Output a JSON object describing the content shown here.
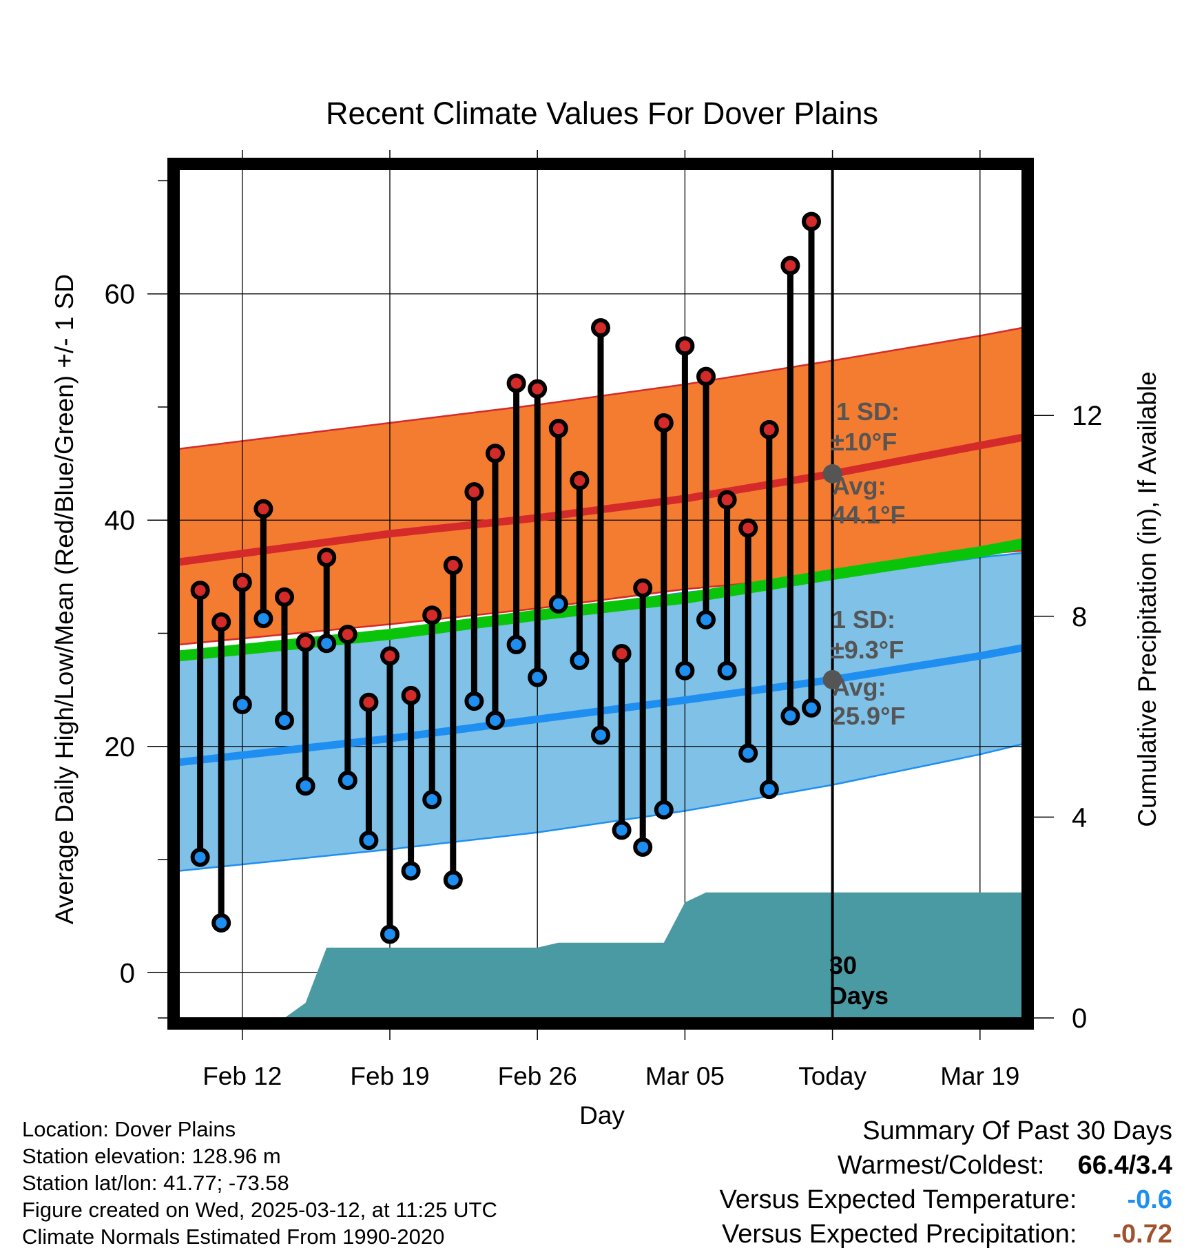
{
  "chart_data": {
    "type": "line",
    "title": "Recent Climate Values For Dover Plains",
    "xlabel": "Day",
    "ylabel": "Average Daily High/Low/Mean (Red/Blue/Green) +/- 1 SD",
    "y2label": "Cumulative Precipitation (in), If Available",
    "x_ticks": [
      "Feb 12",
      "Feb 19",
      "Feb 26",
      "Mar 05",
      "Today",
      "Mar 19"
    ],
    "y_ticks": [
      "0",
      "20",
      "40",
      "60"
    ],
    "y2_ticks": [
      "0",
      "4",
      "8",
      "12"
    ],
    "ylim": [
      -4,
      71
    ],
    "y2lim": [
      0,
      16.9
    ],
    "xlim": [
      "2025-02-09",
      "2025-03-21"
    ],
    "grid": true,
    "daily_highs": [
      {
        "date": "2025-02-10",
        "value": 33.8
      },
      {
        "date": "2025-02-11",
        "value": 31.0
      },
      {
        "date": "2025-02-12",
        "value": 34.5
      },
      {
        "date": "2025-02-13",
        "value": 41.0
      },
      {
        "date": "2025-02-14",
        "value": 33.2
      },
      {
        "date": "2025-02-15",
        "value": 29.2
      },
      {
        "date": "2025-02-16",
        "value": 36.7
      },
      {
        "date": "2025-02-17",
        "value": 29.9
      },
      {
        "date": "2025-02-18",
        "value": 23.9
      },
      {
        "date": "2025-02-19",
        "value": 28.0
      },
      {
        "date": "2025-02-20",
        "value": 24.5
      },
      {
        "date": "2025-02-21",
        "value": 31.6
      },
      {
        "date": "2025-02-22",
        "value": 36.0
      },
      {
        "date": "2025-02-23",
        "value": 42.5
      },
      {
        "date": "2025-02-24",
        "value": 45.9
      },
      {
        "date": "2025-02-25",
        "value": 52.1
      },
      {
        "date": "2025-02-26",
        "value": 51.6
      },
      {
        "date": "2025-02-27",
        "value": 48.1
      },
      {
        "date": "2025-02-28",
        "value": 43.5
      },
      {
        "date": "2025-03-01",
        "value": 57.0
      },
      {
        "date": "2025-03-02",
        "value": 28.2
      },
      {
        "date": "2025-03-03",
        "value": 34.0
      },
      {
        "date": "2025-03-04",
        "value": 48.6
      },
      {
        "date": "2025-03-05",
        "value": 55.4
      },
      {
        "date": "2025-03-06",
        "value": 52.7
      },
      {
        "date": "2025-03-07",
        "value": 41.8
      },
      {
        "date": "2025-03-08",
        "value": 39.3
      },
      {
        "date": "2025-03-09",
        "value": 48.0
      },
      {
        "date": "2025-03-10",
        "value": 62.5
      },
      {
        "date": "2025-03-11",
        "value": 66.4
      }
    ],
    "daily_lows": [
      {
        "date": "2025-02-10",
        "value": 10.2
      },
      {
        "date": "2025-02-11",
        "value": 4.4
      },
      {
        "date": "2025-02-12",
        "value": 23.7
      },
      {
        "date": "2025-02-13",
        "value": 31.3
      },
      {
        "date": "2025-02-14",
        "value": 22.3
      },
      {
        "date": "2025-02-15",
        "value": 16.5
      },
      {
        "date": "2025-02-16",
        "value": 29.1
      },
      {
        "date": "2025-02-17",
        "value": 17.0
      },
      {
        "date": "2025-02-18",
        "value": 11.7
      },
      {
        "date": "2025-02-19",
        "value": 3.4
      },
      {
        "date": "2025-02-20",
        "value": 9.0
      },
      {
        "date": "2025-02-21",
        "value": 15.3
      },
      {
        "date": "2025-02-22",
        "value": 8.2
      },
      {
        "date": "2025-02-23",
        "value": 24.0
      },
      {
        "date": "2025-02-24",
        "value": 22.3
      },
      {
        "date": "2025-02-25",
        "value": 29.0
      },
      {
        "date": "2025-02-26",
        "value": 26.1
      },
      {
        "date": "2025-02-27",
        "value": 32.6
      },
      {
        "date": "2025-02-28",
        "value": 27.6
      },
      {
        "date": "2025-03-01",
        "value": 21.0
      },
      {
        "date": "2025-03-02",
        "value": 12.6
      },
      {
        "date": "2025-03-03",
        "value": 11.1
      },
      {
        "date": "2025-03-04",
        "value": 14.4
      },
      {
        "date": "2025-03-05",
        "value": 26.7
      },
      {
        "date": "2025-03-06",
        "value": 31.2
      },
      {
        "date": "2025-03-07",
        "value": 26.7
      },
      {
        "date": "2025-03-08",
        "value": 19.4
      },
      {
        "date": "2025-03-09",
        "value": 16.2
      },
      {
        "date": "2025-03-10",
        "value": 22.7
      },
      {
        "date": "2025-03-11",
        "value": 23.4
      }
    ],
    "normal_high": {
      "name": "Average Daily High",
      "color": "#d42a2a",
      "band_color": "#f37c31",
      "points": [
        {
          "date": "2025-02-09",
          "value": 36.3
        },
        {
          "date": "2025-02-19",
          "value": 38.8
        },
        {
          "date": "2025-02-26",
          "value": 40.2
        },
        {
          "date": "2025-03-05",
          "value": 41.9
        },
        {
          "date": "2025-03-12",
          "value": 44.1
        },
        {
          "date": "2025-03-19",
          "value": 46.6
        },
        {
          "date": "2025-03-21",
          "value": 47.3
        }
      ],
      "sd_upper": [
        {
          "date": "2025-02-09",
          "value": 46.3
        },
        {
          "date": "2025-02-19",
          "value": 48.6
        },
        {
          "date": "2025-02-26",
          "value": 50.2
        },
        {
          "date": "2025-03-05",
          "value": 52.0
        },
        {
          "date": "2025-03-12",
          "value": 54.1
        },
        {
          "date": "2025-03-19",
          "value": 56.3
        },
        {
          "date": "2025-03-21",
          "value": 57.0
        }
      ],
      "sd_lower": [
        {
          "date": "2025-02-09",
          "value": 29.0
        },
        {
          "date": "2025-02-19",
          "value": 30.8
        },
        {
          "date": "2025-02-26",
          "value": 32.2
        },
        {
          "date": "2025-03-05",
          "value": 33.9
        },
        {
          "date": "2025-03-12",
          "value": 35.1
        },
        {
          "date": "2025-03-19",
          "value": 37.0
        },
        {
          "date": "2025-03-21",
          "value": 37.3
        }
      ]
    },
    "normal_low": {
      "name": "Average Daily Low",
      "color": "#1e8ff0",
      "band_color": "#80c1e8",
      "points": [
        {
          "date": "2025-02-09",
          "value": 18.6
        },
        {
          "date": "2025-02-19",
          "value": 20.7
        },
        {
          "date": "2025-02-26",
          "value": 22.4
        },
        {
          "date": "2025-03-05",
          "value": 24.1
        },
        {
          "date": "2025-03-12",
          "value": 25.9
        },
        {
          "date": "2025-03-19",
          "value": 28.0
        },
        {
          "date": "2025-03-21",
          "value": 28.7
        }
      ],
      "sd_upper": [
        {
          "date": "2025-02-09",
          "value": 27.6
        },
        {
          "date": "2025-02-19",
          "value": 30.2
        },
        {
          "date": "2025-02-26",
          "value": 31.9
        },
        {
          "date": "2025-03-05",
          "value": 33.6
        },
        {
          "date": "2025-03-12",
          "value": 34.9
        },
        {
          "date": "2025-03-19",
          "value": 36.7
        },
        {
          "date": "2025-03-21",
          "value": 37.1
        }
      ],
      "sd_lower": [
        {
          "date": "2025-02-09",
          "value": 9.0
        },
        {
          "date": "2025-02-19",
          "value": 10.9
        },
        {
          "date": "2025-02-26",
          "value": 12.4
        },
        {
          "date": "2025-03-05",
          "value": 14.3
        },
        {
          "date": "2025-03-12",
          "value": 16.6
        },
        {
          "date": "2025-03-19",
          "value": 19.3
        },
        {
          "date": "2025-03-21",
          "value": 20.2
        }
      ]
    },
    "normal_mean": {
      "name": "Average Daily Mean",
      "color": "#0ac40a",
      "points": [
        {
          "date": "2025-02-09",
          "value": 28.0
        },
        {
          "date": "2025-02-19",
          "value": 29.9
        },
        {
          "date": "2025-02-26",
          "value": 31.6
        },
        {
          "date": "2025-03-05",
          "value": 33.1
        },
        {
          "date": "2025-03-12",
          "value": 35.2
        },
        {
          "date": "2025-03-19",
          "value": 37.2
        },
        {
          "date": "2025-03-21",
          "value": 37.9
        }
      ]
    },
    "precip_cumulative": {
      "color": "#4a9aa4",
      "points": [
        {
          "date": "2025-02-09",
          "value": 0.0
        },
        {
          "date": "2025-02-14",
          "value": 0.0
        },
        {
          "date": "2025-02-15",
          "value": 0.3
        },
        {
          "date": "2025-02-16",
          "value": 1.4
        },
        {
          "date": "2025-02-26",
          "value": 1.4
        },
        {
          "date": "2025-02-27",
          "value": 1.5
        },
        {
          "date": "2025-03-04",
          "value": 1.5
        },
        {
          "date": "2025-03-05",
          "value": 2.3
        },
        {
          "date": "2025-03-06",
          "value": 2.5
        },
        {
          "date": "2025-03-21",
          "value": 2.5
        }
      ]
    },
    "annotations": {
      "high_sd_line1": "1 SD:",
      "high_sd_line2": "±10°F",
      "high_avg_line1": "Avg:",
      "high_avg_line2": "44.1°F",
      "low_sd_line1": "1 SD:",
      "low_sd_line2": "±9.3°F",
      "low_avg_line1": "Avg:",
      "low_avg_line2": "25.9°F",
      "window_line1": "30",
      "window_line2": "Days"
    },
    "today_marker": {
      "date": "2025-03-12",
      "high_avg": 44.1,
      "low_avg": 25.9
    }
  },
  "footer": {
    "location": "Location: Dover Plains",
    "elevation": "Station elevation: 128.96 m",
    "latlon": "Station lat/lon: 41.77; -73.58",
    "created": "Figure created on Wed, 2025-03-12, at 11:25 UTC",
    "normals": "Climate Normals Estimated From 1990-2020"
  },
  "summary": {
    "title": "Summary Of Past 30 Days",
    "warm_cold_label": "Warmest/Coldest:",
    "warm_cold_value": "66.4/3.4",
    "temp_label": "Versus Expected Temperature:",
    "temp_value": "-0.6",
    "temp_color": "#1e8ff0",
    "precip_label": "Versus Expected Precipitation:",
    "precip_value": "-0.72",
    "precip_color": "#a0522d"
  }
}
